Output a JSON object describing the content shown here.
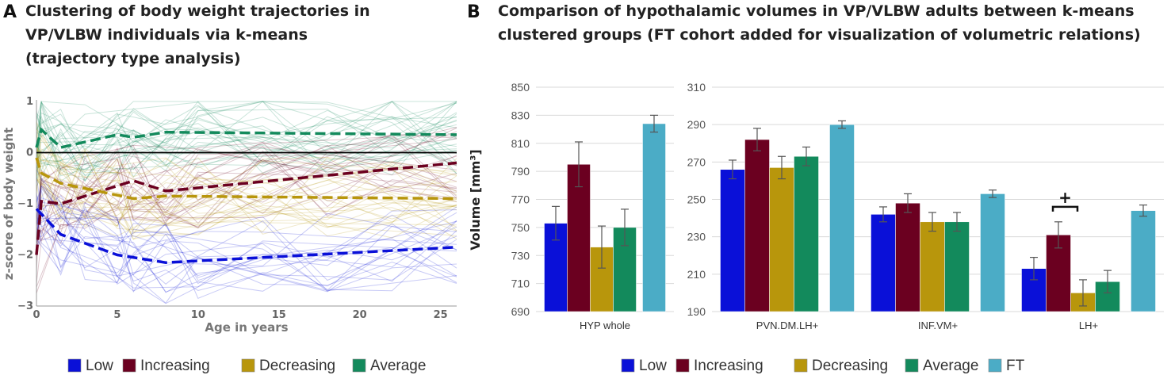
{
  "panel_a": {
    "letter": "A",
    "title_lines": [
      "Clustering of body weight trajectories in",
      "VP/VLBW individuals via k-means",
      "(trajectory type analysis)"
    ]
  },
  "panel_b": {
    "letter": "B",
    "title_lines": [
      "Comparison of hypothalamic volumes in VP/VLBW adults between k-means",
      "clustered groups (FT cohort added for visualization of volumetric relations)"
    ]
  },
  "legend_a": [
    {
      "label": "Low",
      "color": "#0a10d8"
    },
    {
      "label": "Increasing",
      "color": "#6b0020"
    },
    {
      "label": "Decreasing",
      "color": "#b8960c"
    },
    {
      "label": "Average",
      "color": "#138a5c"
    }
  ],
  "legend_b": [
    {
      "label": "Low",
      "color": "#0a10d8"
    },
    {
      "label": "Increasing",
      "color": "#6b0020"
    },
    {
      "label": "Decreasing",
      "color": "#b8960c"
    },
    {
      "label": "Average",
      "color": "#138a5c"
    },
    {
      "label": "FT",
      "color": "#4bacc6"
    }
  ],
  "significance_marker": "+",
  "chart_data": [
    {
      "type": "line",
      "panel": "A",
      "xlabel": "Age in years",
      "ylabel": "z-score of body weight",
      "xlim": [
        0,
        26
      ],
      "ylim": [
        -3,
        1
      ],
      "xticks": [
        0,
        5,
        10,
        15,
        20,
        25
      ],
      "yticks": [
        1,
        0,
        -1,
        -2,
        -3
      ],
      "reference_line_y": 0,
      "series": [
        {
          "name": "Average",
          "color": "#138a5c",
          "x": [
            0,
            0.3,
            1.5,
            5,
            6,
            8,
            26
          ],
          "y": [
            0.1,
            0.45,
            0.1,
            0.35,
            0.3,
            0.4,
            0.35
          ]
        },
        {
          "name": "Increasing",
          "color": "#6b0020",
          "x": [
            0,
            0.3,
            1.5,
            6,
            8,
            26
          ],
          "y": [
            -2.0,
            -0.95,
            -1.0,
            -0.55,
            -0.75,
            -0.2
          ]
        },
        {
          "name": "Decreasing",
          "color": "#b8960c",
          "x": [
            0,
            0.3,
            1.5,
            6,
            8,
            26
          ],
          "y": [
            -0.1,
            -0.4,
            -0.6,
            -0.9,
            -0.85,
            -0.9
          ]
        },
        {
          "name": "Low",
          "color": "#0a10d8",
          "x": [
            0,
            0.3,
            1.5,
            5,
            8,
            26
          ],
          "y": [
            -1.1,
            -1.2,
            -1.6,
            -2.0,
            -2.15,
            -1.85
          ]
        }
      ]
    },
    {
      "type": "bar",
      "panel": "B-left",
      "ylabel": "Volume [mm³]",
      "ylim": [
        690,
        850
      ],
      "yticks": [
        690,
        710,
        730,
        750,
        770,
        790,
        810,
        830,
        850
      ],
      "categories": [
        "HYP whole"
      ],
      "series": [
        {
          "name": "Low",
          "values": [
            753
          ],
          "errors": [
            12
          ]
        },
        {
          "name": "Increasing",
          "values": [
            795
          ],
          "errors": [
            16
          ]
        },
        {
          "name": "Decreasing",
          "values": [
            736
          ],
          "errors": [
            15
          ]
        },
        {
          "name": "Average",
          "values": [
            750
          ],
          "errors": [
            13
          ]
        },
        {
          "name": "FT",
          "values": [
            824
          ],
          "errors": [
            6
          ]
        }
      ]
    },
    {
      "type": "bar",
      "panel": "B-right",
      "ylim": [
        190,
        310
      ],
      "yticks": [
        190,
        210,
        230,
        250,
        270,
        290,
        310
      ],
      "categories": [
        "PVN.DM.LH+",
        "INF.VM+",
        "LH+"
      ],
      "series": [
        {
          "name": "Low",
          "values": [
            266,
            242,
            213
          ],
          "errors": [
            5,
            4,
            6
          ]
        },
        {
          "name": "Increasing",
          "values": [
            282,
            248,
            231
          ],
          "errors": [
            6,
            5,
            7
          ]
        },
        {
          "name": "Decreasing",
          "values": [
            267,
            238,
            200
          ],
          "errors": [
            6,
            5,
            7
          ]
        },
        {
          "name": "Average",
          "values": [
            273,
            238,
            206
          ],
          "errors": [
            5,
            5,
            6
          ]
        },
        {
          "name": "FT",
          "values": [
            290,
            253,
            244
          ],
          "errors": [
            2,
            2,
            3
          ]
        }
      ]
    }
  ]
}
